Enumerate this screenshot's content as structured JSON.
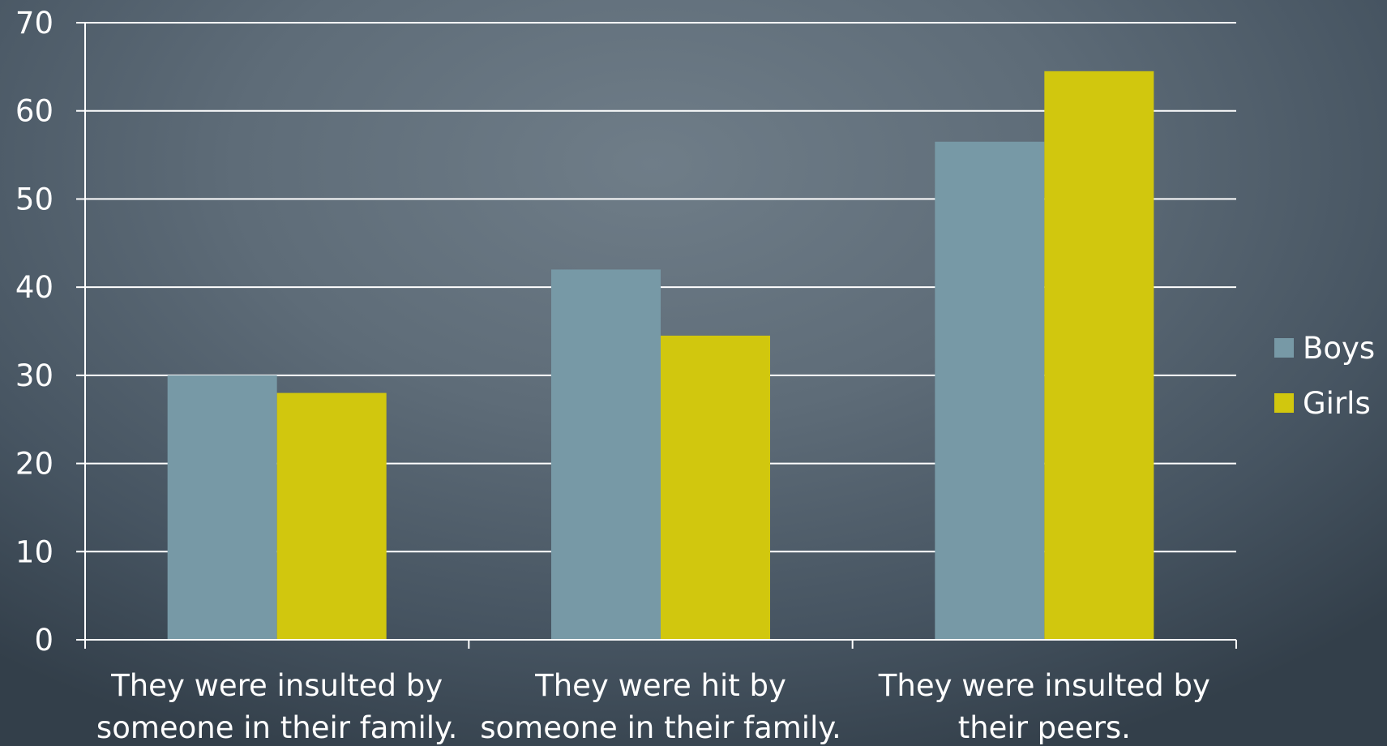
{
  "chart_data": {
    "type": "bar",
    "categories": [
      [
        "They were insulted by",
        "someone in their family."
      ],
      [
        "They were hit by",
        "someone in their family."
      ],
      [
        "They were insulted by",
        "their peers."
      ]
    ],
    "series": [
      {
        "name": "Boys",
        "values": [
          30,
          42,
          56.5
        ],
        "color": "#7799a6"
      },
      {
        "name": "Girls",
        "values": [
          28,
          34.5,
          64.5
        ],
        "color": "#d1c70e"
      }
    ],
    "ylim": [
      0,
      70
    ],
    "yticks": [
      0,
      10,
      20,
      30,
      40,
      50,
      60,
      70
    ],
    "grid": true,
    "legend_position": "right"
  }
}
